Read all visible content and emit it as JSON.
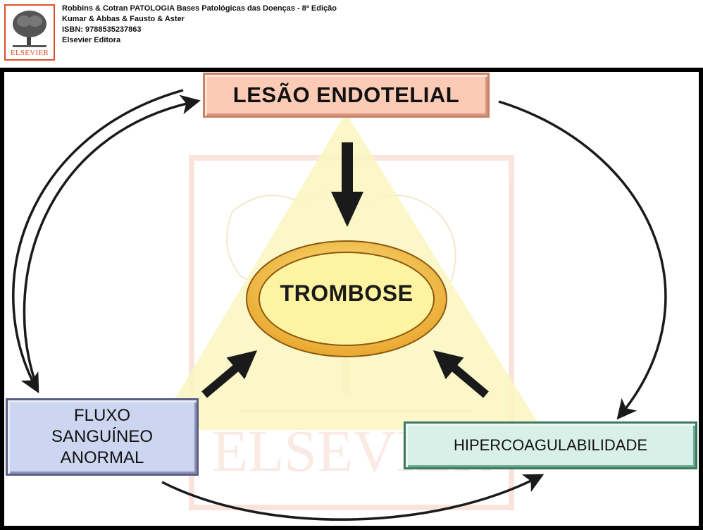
{
  "header": {
    "logo_text": "ELSEVIER",
    "book_title": "Robbins & Cotran PATOLOGIA Bases Patológicas das Doenças - 8ª Edição",
    "authors": "Kumar & Abbas & Fausto & Aster",
    "isbn": "ISBN: 9788535237863",
    "publisher": "Elsevier Editora"
  },
  "diagram": {
    "top_box": "LESÃO ENDOTELIAL",
    "center": "TROMBOSE",
    "left_box_lines": [
      "FLUXO",
      "SANGUÍNEO",
      "ANORMAL"
    ],
    "right_box": "HIPERCOAGULABILIDADE",
    "watermark_text": "ELSEVIER"
  },
  "colors": {
    "triangle": "#fbf6c0",
    "top_box_fill": "#fbcbb6",
    "left_box_fill": "#cdd6f0",
    "right_box_fill": "#d8f0e8",
    "ellipse_outer": "#e9a72f",
    "ellipse_inner": "#fde98a",
    "watermark": "#f6d9cf",
    "arrow": "#1a1a1a"
  }
}
